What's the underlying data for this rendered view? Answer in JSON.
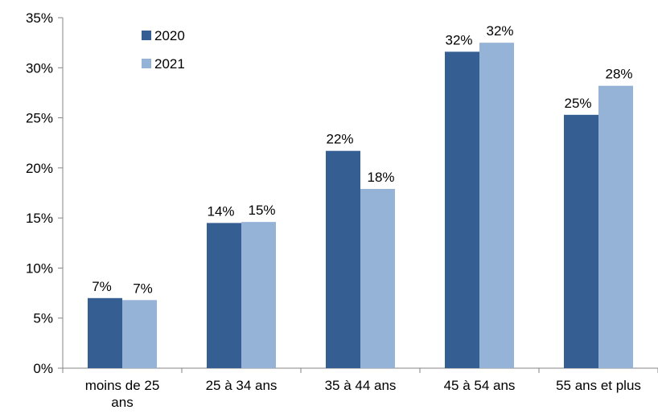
{
  "chart_data": {
    "type": "bar",
    "categories": [
      [
        "moins de 25",
        "ans"
      ],
      [
        "25 à 34 ans"
      ],
      [
        "35 à 44 ans"
      ],
      [
        "45 à 54 ans"
      ],
      [
        "55 ans et plus"
      ]
    ],
    "series": [
      {
        "name": "2020",
        "color": "#355E93",
        "values": [
          7.0,
          14.5,
          21.7,
          31.6,
          25.3
        ],
        "labels": [
          "7%",
          "14%",
          "22%",
          "32%",
          "25%"
        ]
      },
      {
        "name": "2021",
        "color": "#95B3D7",
        "values": [
          6.8,
          14.6,
          17.9,
          32.5,
          28.2
        ],
        "labels": [
          "7%",
          "15%",
          "18%",
          "32%",
          "28%"
        ]
      }
    ],
    "y_ticks": [
      "0%",
      "5%",
      "10%",
      "15%",
      "20%",
      "25%",
      "30%",
      "35%"
    ],
    "ylim": [
      0,
      35
    ],
    "legend_position": "top-left",
    "grid": false
  }
}
